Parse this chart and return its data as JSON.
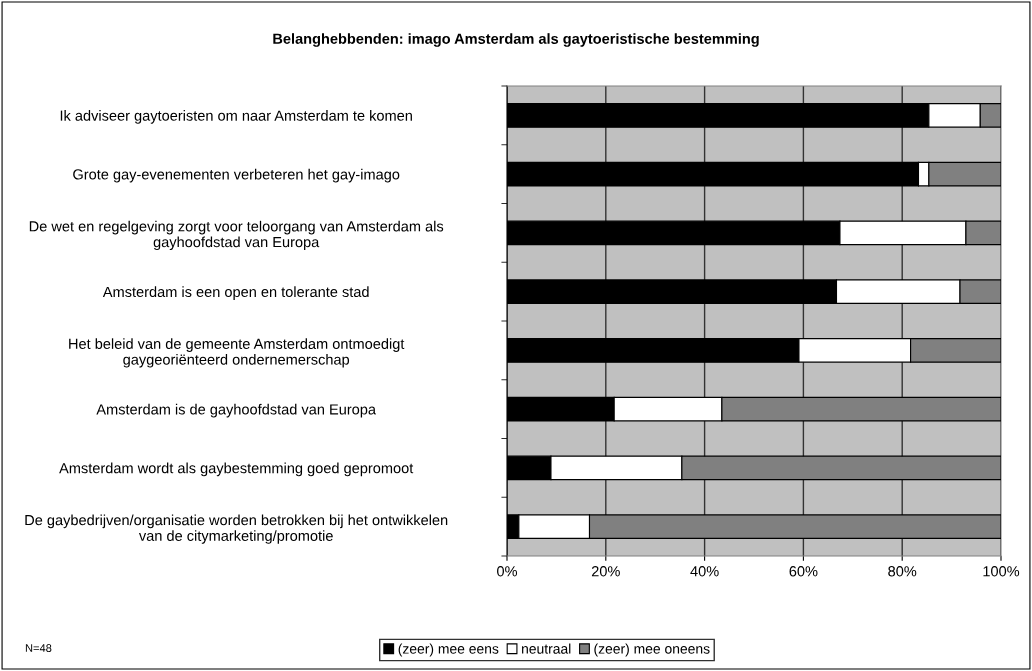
{
  "chart_data": {
    "type": "bar",
    "orientation": "horizontal",
    "stacked": true,
    "title": "Belanghebbenden: imago Amsterdam als gaytoeristische bestemming",
    "categories": [
      "Ik adviseer gaytoeristen om naar Amsterdam te komen",
      "Grote gay-evenementen verbeteren het gay-imago",
      "De wet en regelgeving zorgt voor teloorgang van Amsterdam als\ngayhoofdstad van Europa",
      "Amsterdam is een open en tolerante stad",
      "Het beleid van de gemeente Amsterdam ontmoedigt\ngaygeoriënteerd ondernemerschap",
      "Amsterdam is de gayhoofdstad van Europa",
      "Amsterdam wordt als gaybestemming goed gepromoot",
      "De gaybedrijven/organisatie worden betrokken bij het ontwikkelen\nvan de citymarketing/promotie"
    ],
    "series": [
      {
        "name": "(zeer) mee eens",
        "color": "#000000",
        "values": [
          85.4,
          83.3,
          67.4,
          66.7,
          59.1,
          21.7,
          8.9,
          2.4
        ]
      },
      {
        "name": "neutraal",
        "color": "#ffffff",
        "values": [
          10.4,
          2.1,
          25.5,
          25.0,
          22.6,
          21.8,
          26.5,
          14.3
        ]
      },
      {
        "name": "(zeer) mee oneens",
        "color": "#808080",
        "values": [
          4.2,
          14.6,
          7.1,
          8.3,
          18.3,
          56.5,
          64.6,
          83.3
        ]
      }
    ],
    "xlim": [
      0,
      100
    ],
    "xticks": [
      {
        "value": 0,
        "label": "0%"
      },
      {
        "value": 20,
        "label": "20%"
      },
      {
        "value": 40,
        "label": "40%"
      },
      {
        "value": 60,
        "label": "60%"
      },
      {
        "value": 80,
        "label": "80%"
      },
      {
        "value": 100,
        "label": "100%"
      }
    ],
    "grid": "x",
    "legend": "bottom",
    "annotations": [
      "N=48"
    ]
  }
}
